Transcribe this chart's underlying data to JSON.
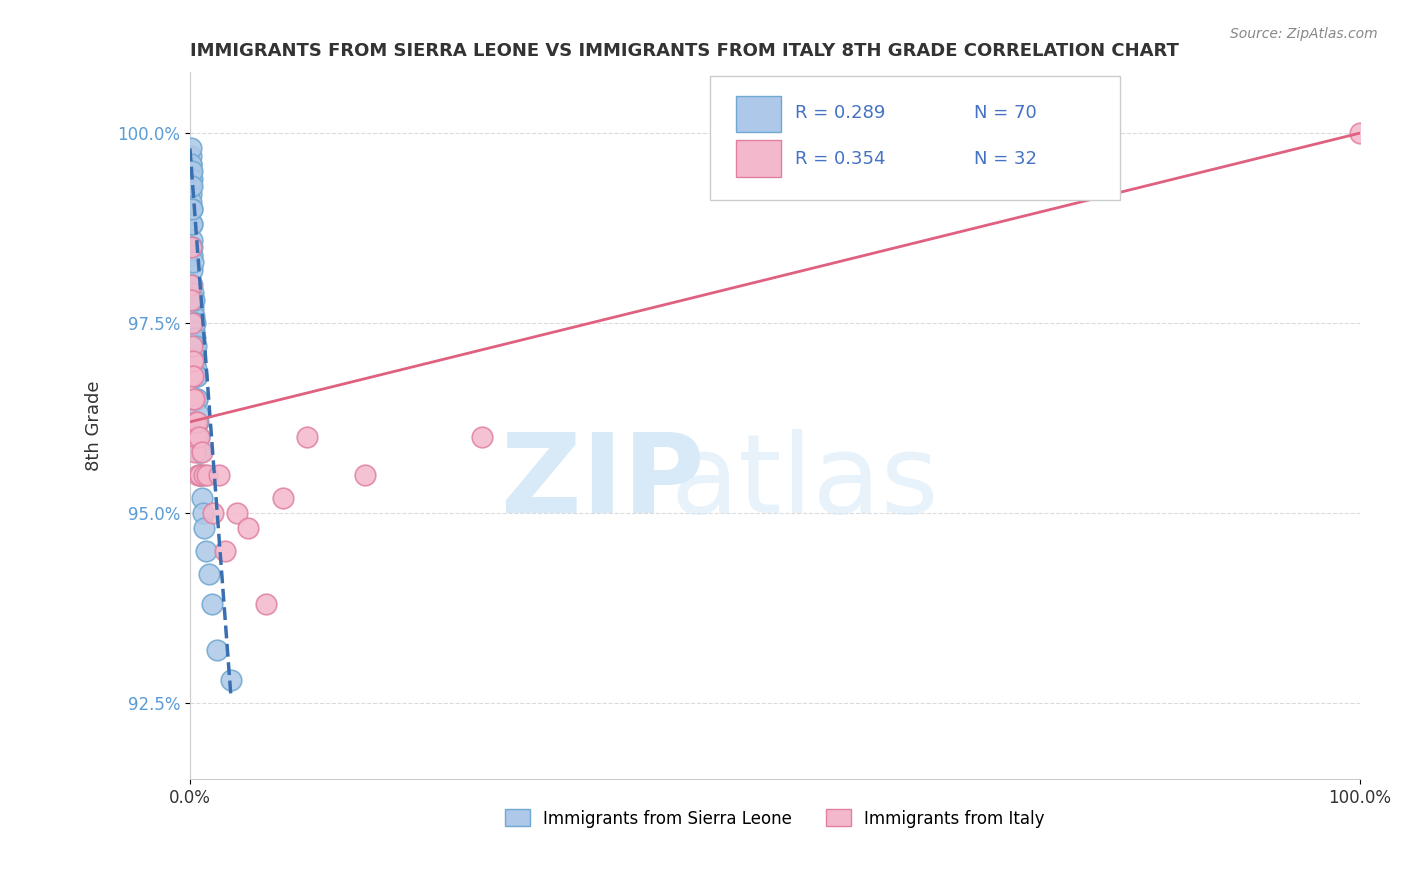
{
  "title": "IMMIGRANTS FROM SIERRA LEONE VS IMMIGRANTS FROM ITALY 8TH GRADE CORRELATION CHART",
  "source": "Source: ZipAtlas.com",
  "ylabel": "8th Grade",
  "xlim": [
    0.0,
    100.0
  ],
  "ylim": [
    91.5,
    100.8
  ],
  "yticks": [
    92.5,
    95.0,
    97.5,
    100.0
  ],
  "ytick_labels": [
    "92.5%",
    "95.0%",
    "97.5%",
    "100.0%"
  ],
  "xtick_labels": [
    "0.0%",
    "100.0%"
  ],
  "series1_label": "Immigrants from Sierra Leone",
  "series1_R": 0.289,
  "series1_N": 70,
  "series1_color": "#adc8e8",
  "series1_edge": "#6fa8d0",
  "series2_label": "Immigrants from Italy",
  "series2_R": 0.354,
  "series2_N": 32,
  "series2_color": "#f4b8cc",
  "series2_edge": "#e080a0",
  "trend1_color": "#3a6faf",
  "trend2_color": "#e06080",
  "watermark_color": "#d8eaf8",
  "legend_text_color": "#4472c4",
  "grid_color": "#d8d8d8",
  "background_color": "#ffffff",
  "sierra_leone_x": [
    0.05,
    0.07,
    0.08,
    0.08,
    0.09,
    0.1,
    0.1,
    0.11,
    0.12,
    0.13,
    0.14,
    0.15,
    0.15,
    0.16,
    0.17,
    0.18,
    0.18,
    0.19,
    0.2,
    0.2,
    0.21,
    0.21,
    0.22,
    0.22,
    0.23,
    0.23,
    0.24,
    0.25,
    0.26,
    0.27,
    0.28,
    0.29,
    0.3,
    0.31,
    0.32,
    0.33,
    0.34,
    0.35,
    0.36,
    0.37,
    0.38,
    0.4,
    0.42,
    0.44,
    0.45,
    0.46,
    0.48,
    0.5,
    0.52,
    0.54,
    0.56,
    0.58,
    0.6,
    0.62,
    0.65,
    0.68,
    0.7,
    0.75,
    0.8,
    0.85,
    0.9,
    0.95,
    1.0,
    1.1,
    1.2,
    1.4,
    1.6,
    1.9,
    2.3,
    3.5
  ],
  "sierra_leone_y": [
    99.5,
    99.6,
    99.4,
    99.7,
    99.5,
    99.3,
    99.8,
    99.2,
    99.6,
    99.1,
    99.4,
    99.5,
    98.8,
    99.3,
    98.6,
    99.0,
    98.4,
    98.8,
    98.5,
    99.0,
    97.8,
    98.2,
    97.5,
    98.0,
    97.6,
    98.3,
    97.4,
    97.8,
    97.9,
    97.5,
    97.3,
    97.7,
    97.4,
    97.6,
    97.2,
    97.5,
    97.3,
    97.8,
    97.0,
    97.4,
    97.2,
    97.5,
    97.1,
    97.3,
    96.8,
    97.0,
    96.9,
    96.8,
    97.2,
    96.5,
    96.8,
    96.5,
    96.8,
    96.5,
    96.2,
    96.0,
    96.3,
    95.8,
    96.0,
    95.5,
    95.8,
    95.5,
    95.2,
    95.0,
    94.8,
    94.5,
    94.2,
    93.8,
    93.2,
    92.8
  ],
  "italy_x": [
    0.08,
    0.1,
    0.12,
    0.15,
    0.18,
    0.2,
    0.22,
    0.25,
    0.28,
    0.3,
    0.35,
    0.4,
    0.45,
    0.5,
    0.6,
    0.7,
    0.8,
    0.9,
    1.0,
    1.2,
    1.5,
    2.0,
    2.5,
    3.0,
    4.0,
    5.0,
    6.5,
    8.0,
    10.0,
    15.0,
    25.0,
    100.0
  ],
  "italy_y": [
    98.5,
    98.0,
    97.8,
    97.5,
    97.0,
    97.2,
    96.8,
    97.0,
    96.5,
    96.8,
    96.5,
    96.2,
    95.8,
    96.0,
    96.2,
    95.5,
    96.0,
    95.5,
    95.8,
    95.5,
    95.5,
    95.0,
    95.5,
    94.5,
    95.0,
    94.8,
    93.8,
    95.2,
    96.0,
    95.5,
    96.0,
    100.0
  ],
  "sl_trend_x": [
    0.0,
    3.5
  ],
  "sl_trend_y": [
    99.8,
    92.6
  ],
  "it_trend_x": [
    0.0,
    100.0
  ],
  "it_trend_y": [
    96.2,
    100.0
  ]
}
